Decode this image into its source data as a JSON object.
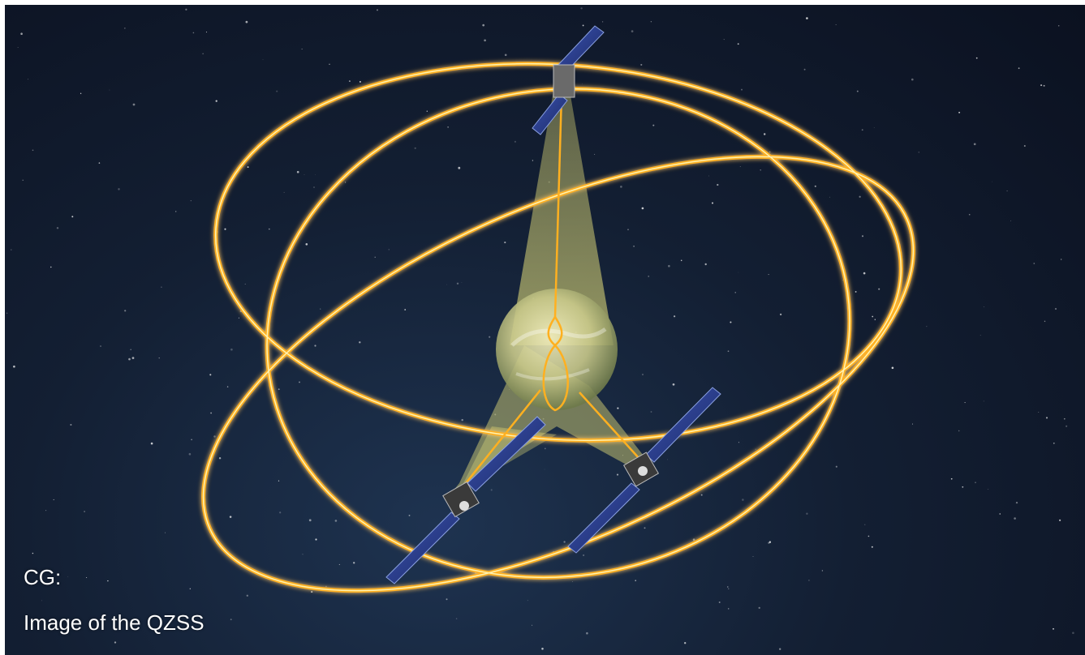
{
  "caption": {
    "line1": "CG:",
    "line2": "Image of the QZSS"
  },
  "colors": {
    "orbit": "#ffb020",
    "orbit_core": "#fff2b0",
    "coverage_beam": "#e6e07a",
    "space": "#131f33",
    "solar_panel": "#2c3e8c"
  },
  "objects": [
    "earth",
    "satellite",
    "satellite",
    "satellite",
    "orbit",
    "orbit",
    "orbit",
    "ground-track"
  ]
}
